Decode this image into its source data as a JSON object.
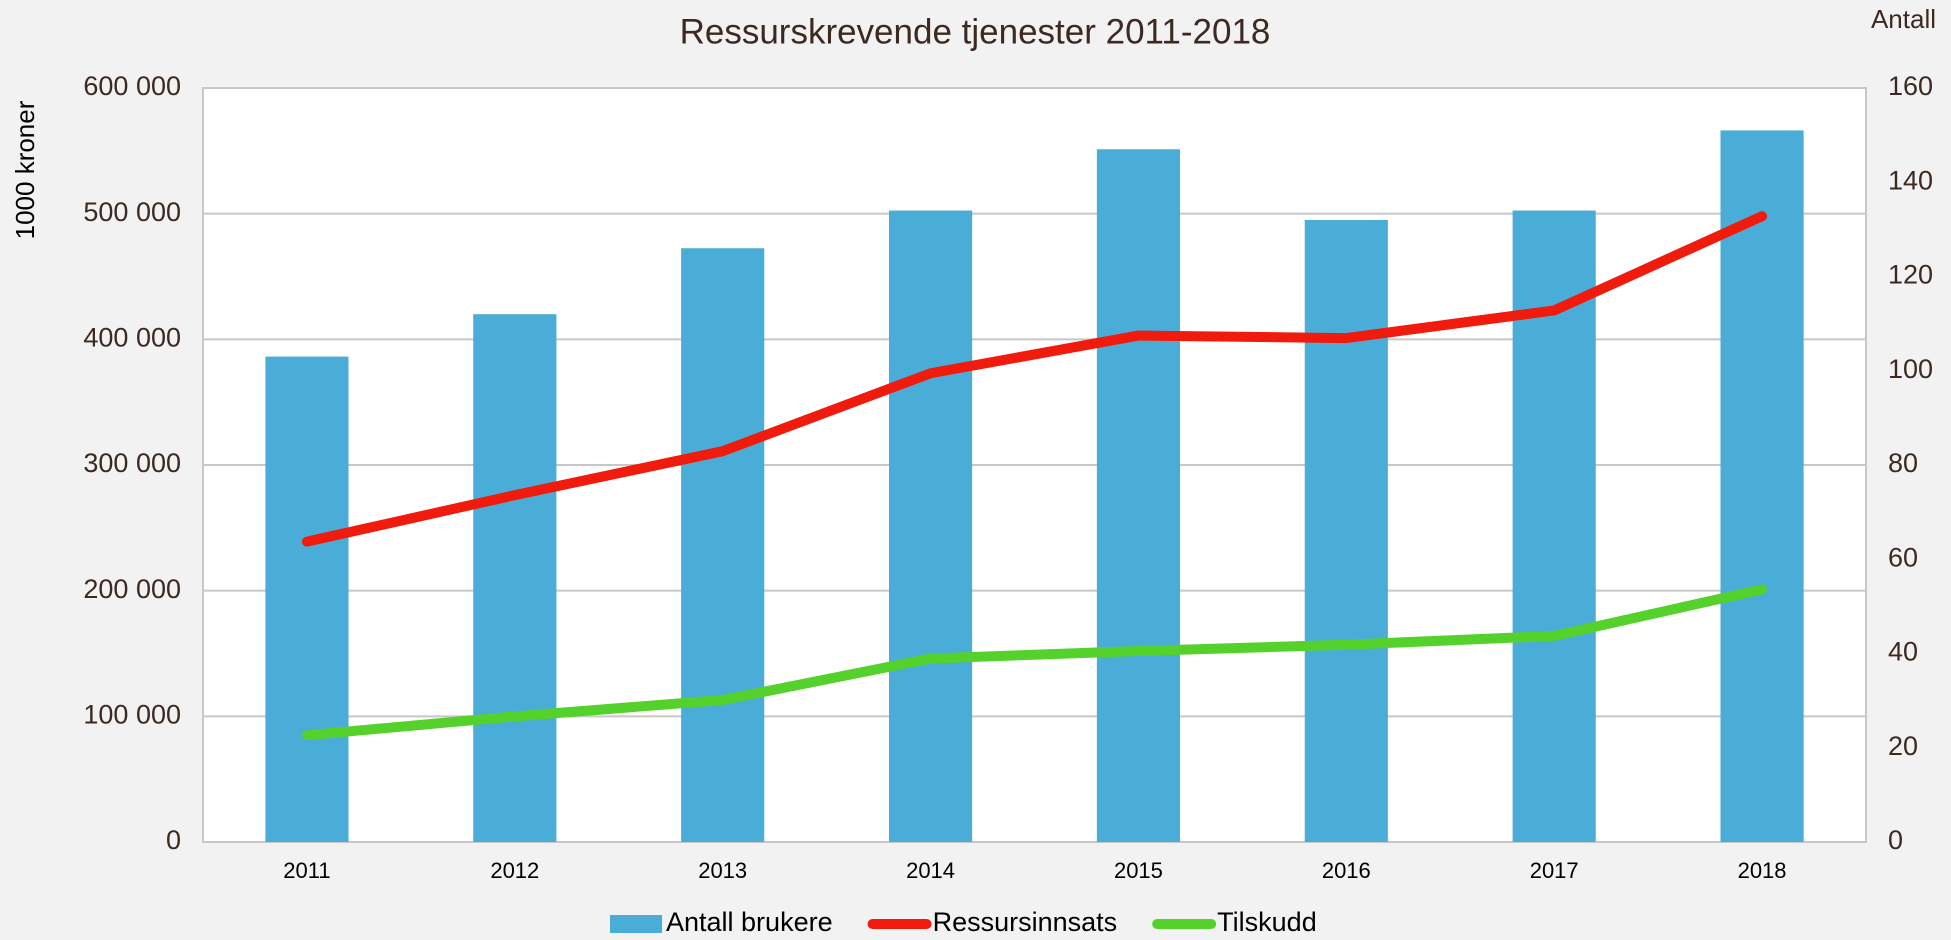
{
  "chart_data": {
    "type": "bar_line",
    "title": "Ressurskrevende tjenester 2011-2018",
    "ylabel": "1000  kroner",
    "y2label": "Antall",
    "categories": [
      "2011",
      "2012",
      "2013",
      "2014",
      "2015",
      "2016",
      "2017",
      "2018"
    ],
    "series": [
      {
        "name": "Antall brukere",
        "type": "bar",
        "axis": "y2",
        "color": "#4aadd8",
        "values": [
          103,
          112,
          126,
          134,
          147,
          132,
          134,
          151
        ]
      },
      {
        "name": "Ressursinnsats",
        "type": "line",
        "color": "#f01b0c",
        "values": [
          239000,
          276000,
          311000,
          373000,
          403000,
          401000,
          423000,
          498000
        ]
      },
      {
        "name": "Tilskudd",
        "type": "line",
        "color": "#55d12c",
        "values": [
          85000,
          100000,
          113000,
          146000,
          152000,
          157000,
          164000,
          201000
        ]
      }
    ],
    "ylim": [
      0,
      600000
    ],
    "yticks": [
      0,
      {
        "value": 100000,
        "label": "100 000"
      },
      {
        "value": 200000,
        "label": "200 000"
      },
      {
        "value": 300000,
        "label": "300 000"
      },
      {
        "value": 400000,
        "label": "400 000"
      },
      {
        "value": 500000,
        "label": "500 000"
      },
      {
        "value": 600000,
        "label": "600 000"
      }
    ],
    "y2lim": [
      0,
      160
    ],
    "y2ticks": [
      0,
      20,
      40,
      60,
      80,
      100,
      120,
      140,
      160
    ],
    "grid": true,
    "legend": "bottom"
  }
}
